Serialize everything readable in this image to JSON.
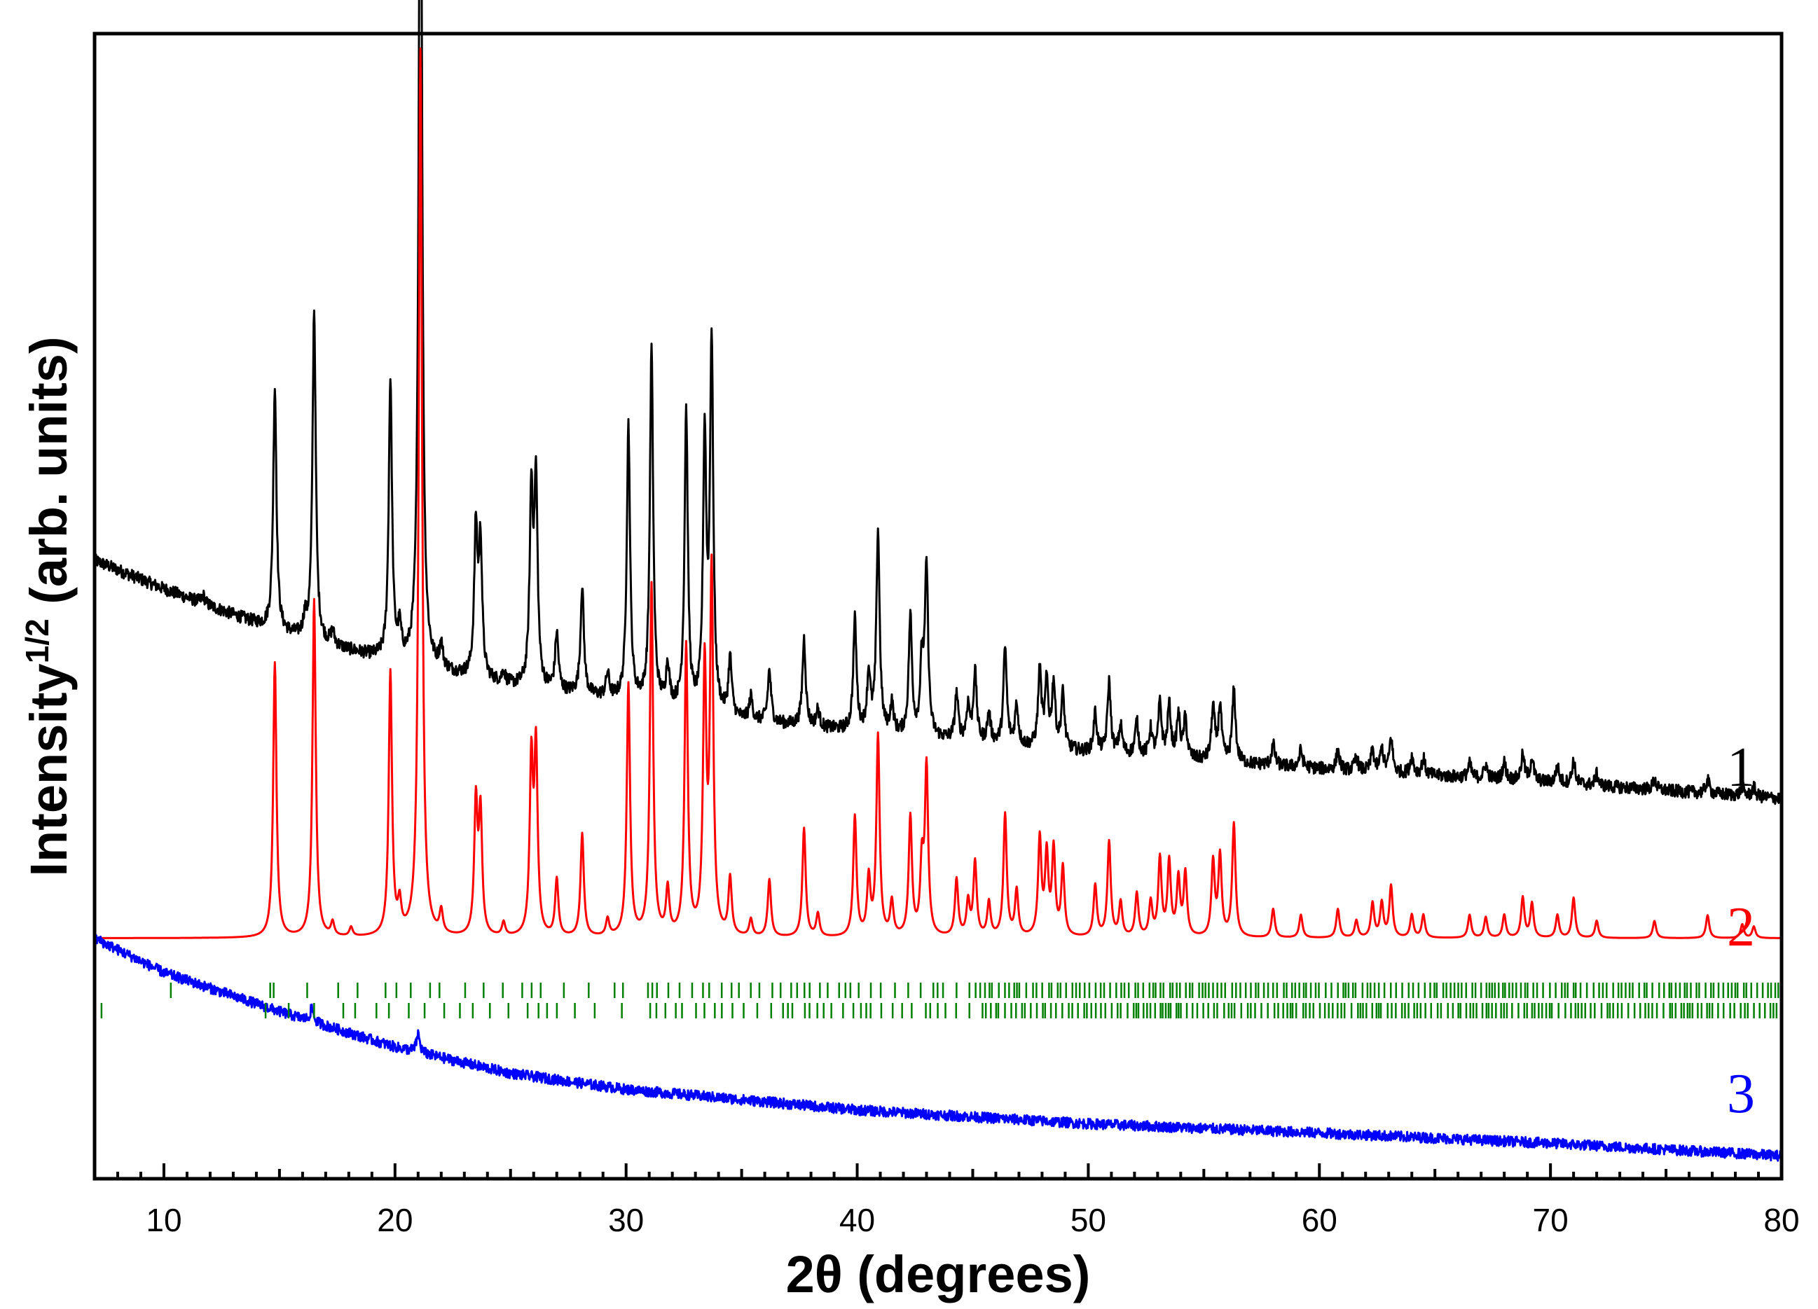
{
  "chart_data": {
    "type": "line",
    "title": "",
    "xlabel": "2θ (degrees)",
    "ylabel_main": "Intensity",
    "ylabel_sup": "1/2",
    "ylabel_rest": " (arb. units)",
    "xlim": [
      7,
      80
    ],
    "ylim": [
      0,
      100
    ],
    "xticks": [
      10,
      20,
      30,
      40,
      50,
      60,
      70,
      80
    ],
    "xtick_labels": [
      "10",
      "20",
      "30",
      "40",
      "50",
      "60",
      "70",
      "80"
    ],
    "yticks_shown": false,
    "series": [
      {
        "name": "1",
        "color": "#000000",
        "description": "experimental pattern",
        "baseline": [
          [
            7,
            54.0
          ],
          [
            10,
            51.5
          ],
          [
            15,
            47.7
          ],
          [
            20,
            45.0
          ],
          [
            25,
            43.0
          ],
          [
            30,
            41.7
          ],
          [
            35,
            40.0
          ],
          [
            40,
            39.0
          ],
          [
            50,
            37.2
          ],
          [
            60,
            35.8
          ],
          [
            70,
            34.6
          ],
          [
            80,
            33.2
          ]
        ],
        "peaks": [
          [
            11.7,
            0.7
          ],
          [
            14.8,
            21.2
          ],
          [
            16.1,
            1.5
          ],
          [
            16.5,
            29.0
          ],
          [
            17.3,
            1.2
          ],
          [
            19.8,
            24.5
          ],
          [
            20.2,
            2.5
          ],
          [
            21.1,
            84.0
          ],
          [
            22.0,
            2.0
          ],
          [
            23.5,
            12.8
          ],
          [
            23.7,
            11.5
          ],
          [
            24.7,
            1.0
          ],
          [
            25.9,
            16.5
          ],
          [
            26.1,
            17.5
          ],
          [
            27.0,
            5.0
          ],
          [
            28.1,
            9.5
          ],
          [
            29.2,
            2.0
          ],
          [
            30.1,
            24.0
          ],
          [
            31.1,
            31.0
          ],
          [
            31.8,
            3.5
          ],
          [
            32.6,
            26.0
          ],
          [
            33.4,
            23.5
          ],
          [
            33.7,
            32.0
          ],
          [
            34.5,
            5.0
          ],
          [
            35.4,
            2.0
          ],
          [
            36.2,
            4.5
          ],
          [
            37.7,
            7.6
          ],
          [
            38.3,
            1.5
          ],
          [
            39.9,
            9.7
          ],
          [
            40.5,
            5.0
          ],
          [
            40.9,
            17.5
          ],
          [
            41.5,
            2.5
          ],
          [
            42.3,
            10.3
          ],
          [
            42.8,
            6.0
          ],
          [
            43.0,
            14.5
          ],
          [
            44.3,
            4.0
          ],
          [
            44.8,
            3.0
          ],
          [
            45.1,
            6.0
          ],
          [
            45.7,
            2.5
          ],
          [
            46.4,
            8.4
          ],
          [
            46.9,
            3.5
          ],
          [
            47.9,
            6.6
          ],
          [
            48.2,
            5.5
          ],
          [
            48.5,
            5.6
          ],
          [
            48.9,
            4.8
          ],
          [
            50.3,
            3.4
          ],
          [
            50.9,
            6.2
          ],
          [
            51.4,
            2.4
          ],
          [
            52.1,
            2.9
          ],
          [
            52.7,
            2.3
          ],
          [
            53.1,
            4.6
          ],
          [
            53.5,
            4.5
          ],
          [
            53.9,
            3.6
          ],
          [
            54.2,
            3.4
          ],
          [
            55.4,
            4.6
          ],
          [
            55.7,
            4.8
          ],
          [
            56.3,
            6.3
          ],
          [
            58.0,
            1.8
          ],
          [
            59.2,
            1.5
          ],
          [
            60.8,
            1.6
          ],
          [
            61.6,
            1.2
          ],
          [
            62.3,
            1.8
          ],
          [
            62.7,
            2.0
          ],
          [
            63.1,
            3.0
          ],
          [
            64.0,
            1.5
          ],
          [
            64.5,
            1.4
          ],
          [
            66.5,
            1.2
          ],
          [
            67.2,
            1.2
          ],
          [
            68.0,
            1.5
          ],
          [
            68.8,
            2.2
          ],
          [
            69.2,
            2.0
          ],
          [
            70.3,
            1.4
          ],
          [
            71.0,
            2.0
          ],
          [
            72.0,
            1.0
          ],
          [
            74.5,
            0.9
          ],
          [
            76.8,
            1.2
          ],
          [
            78.3,
            0.8
          ],
          [
            78.8,
            0.8
          ]
        ]
      },
      {
        "name": "2",
        "color": "#ff0000",
        "description": "calculated pattern",
        "baseline": [
          [
            7,
            21.0
          ],
          [
            80,
            21.0
          ]
        ],
        "peaks": [
          [
            14.8,
            24.0
          ],
          [
            16.5,
            29.5
          ],
          [
            17.3,
            1.2
          ],
          [
            18.1,
            0.8
          ],
          [
            19.8,
            23.0
          ],
          [
            20.2,
            2.5
          ],
          [
            21.1,
            77.5
          ],
          [
            22.0,
            2.0
          ],
          [
            23.5,
            11.5
          ],
          [
            23.7,
            10.5
          ],
          [
            24.7,
            1.2
          ],
          [
            25.9,
            15.0
          ],
          [
            26.1,
            16.0
          ],
          [
            27.0,
            5.0
          ],
          [
            28.1,
            9.0
          ],
          [
            29.2,
            1.5
          ],
          [
            30.1,
            22.0
          ],
          [
            31.1,
            30.7
          ],
          [
            31.8,
            4.0
          ],
          [
            32.6,
            25.3
          ],
          [
            33.4,
            23.0
          ],
          [
            33.7,
            31.5
          ],
          [
            34.5,
            5.0
          ],
          [
            35.4,
            1.5
          ],
          [
            36.2,
            5.0
          ],
          [
            37.7,
            9.5
          ],
          [
            38.3,
            2.0
          ],
          [
            39.9,
            10.5
          ],
          [
            40.5,
            5.0
          ],
          [
            40.9,
            17.5
          ],
          [
            41.5,
            3.0
          ],
          [
            42.3,
            10.4
          ],
          [
            42.8,
            6.0
          ],
          [
            43.0,
            14.6
          ],
          [
            44.3,
            5.0
          ],
          [
            44.8,
            3.0
          ],
          [
            45.1,
            6.5
          ],
          [
            45.7,
            3.0
          ],
          [
            46.4,
            10.7
          ],
          [
            46.9,
            4.0
          ],
          [
            47.9,
            8.5
          ],
          [
            48.2,
            7.0
          ],
          [
            48.5,
            7.5
          ],
          [
            48.9,
            6.0
          ],
          [
            50.3,
            4.5
          ],
          [
            50.9,
            8.3
          ],
          [
            51.4,
            3.0
          ],
          [
            52.1,
            3.8
          ],
          [
            52.7,
            3.0
          ],
          [
            53.1,
            6.8
          ],
          [
            53.5,
            6.5
          ],
          [
            53.9,
            5.0
          ],
          [
            54.2,
            5.5
          ],
          [
            55.4,
            6.5
          ],
          [
            55.7,
            7.0
          ],
          [
            56.3,
            9.9
          ],
          [
            58.0,
            2.5
          ],
          [
            59.2,
            2.0
          ],
          [
            60.8,
            2.5
          ],
          [
            61.6,
            1.5
          ],
          [
            62.3,
            3.0
          ],
          [
            62.7,
            3.0
          ],
          [
            63.1,
            4.5
          ],
          [
            64.0,
            2.0
          ],
          [
            64.5,
            2.0
          ],
          [
            66.5,
            2.0
          ],
          [
            67.2,
            1.8
          ],
          [
            68.0,
            2.0
          ],
          [
            68.8,
            3.5
          ],
          [
            69.2,
            3.0
          ],
          [
            70.3,
            2.0
          ],
          [
            71.0,
            3.5
          ],
          [
            72.0,
            1.5
          ],
          [
            74.5,
            1.5
          ],
          [
            76.8,
            2.0
          ],
          [
            78.3,
            1.2
          ],
          [
            78.8,
            1.0
          ]
        ]
      },
      {
        "name": "3",
        "color": "#0000ff",
        "description": "background pattern",
        "baseline": [
          [
            7,
            21.0
          ],
          [
            10,
            18.0
          ],
          [
            15,
            14.6
          ],
          [
            20,
            11.5
          ],
          [
            25,
            9.2
          ],
          [
            30,
            7.8
          ],
          [
            35,
            6.9
          ],
          [
            40,
            6.0
          ],
          [
            50,
            4.8
          ],
          [
            60,
            4.0
          ],
          [
            70,
            3.1
          ],
          [
            80,
            2.0
          ]
        ],
        "peaks": [
          [
            16.4,
            1.2
          ],
          [
            21.0,
            1.6
          ]
        ]
      }
    ],
    "reflection_markers": {
      "color": "#008000",
      "rows": 2,
      "description": "Bragg reflection positions"
    },
    "curve_labels": [
      "1",
      "2",
      "3"
    ]
  }
}
